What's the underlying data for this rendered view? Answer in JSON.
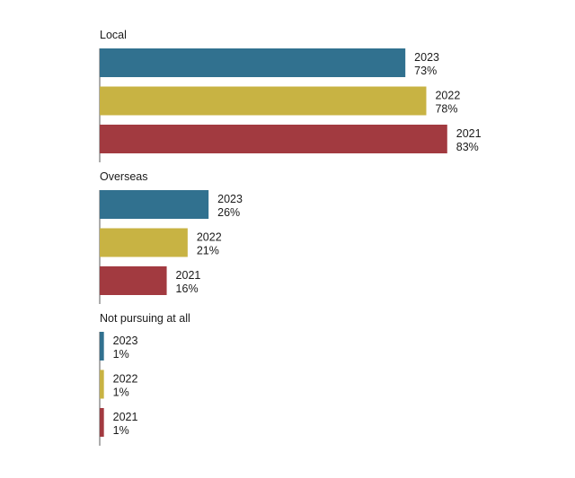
{
  "chart_data": {
    "type": "bar",
    "orientation": "horizontal",
    "grid": false,
    "legend": "none",
    "xlim": [
      0,
      100
    ],
    "groups": [
      {
        "title": "Local",
        "bars": [
          {
            "year": "2023",
            "label": "73%",
            "value": 73,
            "color": "#31718f"
          },
          {
            "year": "2022",
            "label": "78%",
            "value": 78,
            "color": "#c8b343"
          },
          {
            "year": "2021",
            "label": "83%",
            "value": 83,
            "color": "#a23a40"
          }
        ]
      },
      {
        "title": "Overseas",
        "bars": [
          {
            "year": "2023",
            "label": "26%",
            "value": 26,
            "color": "#31718f"
          },
          {
            "year": "2022",
            "label": "21%",
            "value": 21,
            "color": "#c8b343"
          },
          {
            "year": "2021",
            "label": "16%",
            "value": 16,
            "color": "#a23a40"
          }
        ]
      },
      {
        "title": "Not pursuing at all",
        "bars": [
          {
            "year": "2023",
            "label": "1%",
            "value": 1,
            "color": "#31718f"
          },
          {
            "year": "2022",
            "label": "1%",
            "value": 1,
            "color": "#c8b343"
          },
          {
            "year": "2021",
            "label": "1%",
            "value": 1,
            "color": "#a23a40"
          }
        ]
      }
    ]
  }
}
